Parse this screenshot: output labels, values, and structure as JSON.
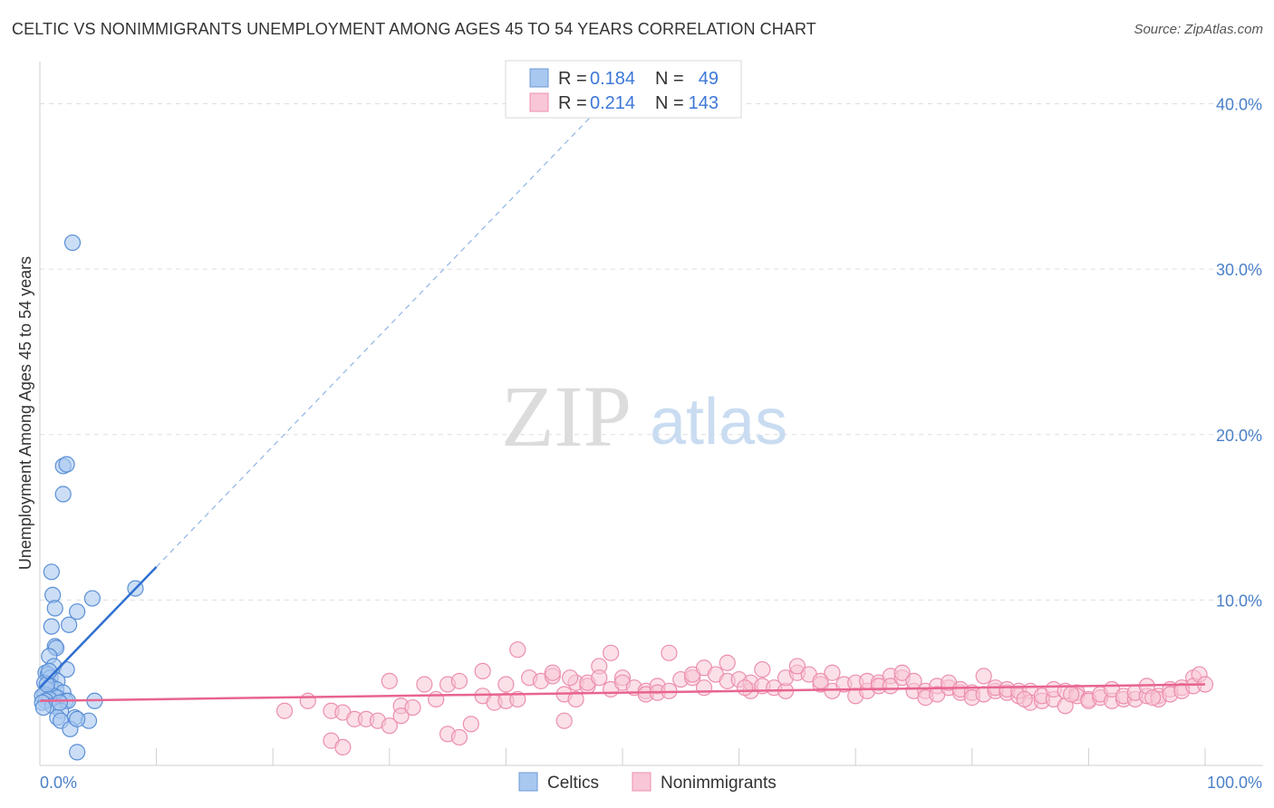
{
  "header": {
    "title": "CELTIC VS NONIMMIGRANTS UNEMPLOYMENT AMONG AGES 45 TO 54 YEARS CORRELATION CHART",
    "source": "Source: ZipAtlas.com"
  },
  "watermark": {
    "zip": "ZIP",
    "atlas": "atlas"
  },
  "legend": {
    "r_label": "R =",
    "n_label": "N =",
    "rows": [
      {
        "r": "0.184",
        "n": "49"
      },
      {
        "r": "0.214",
        "n": "143"
      }
    ]
  },
  "chart_data": {
    "type": "scatter",
    "title": "CELTIC VS NONIMMIGRANTS UNEMPLOYMENT AMONG AGES 45 TO 54 YEARS CORRELATION CHART",
    "xlabel": "",
    "ylabel": "Unemployment Among Ages 45 to 54 years",
    "xlim": [
      0,
      100
    ],
    "ylim": [
      0,
      42
    ],
    "x_tick_labels": [
      "0.0%",
      "100.0%"
    ],
    "y_ticks": [
      10,
      20,
      30,
      40
    ],
    "y_tick_labels": [
      "10.0%",
      "20.0%",
      "30.0%",
      "40.0%"
    ],
    "grid": true,
    "colors": {
      "celtics_fill": "#a9c8f0",
      "celtics_stroke": "#5a8fd6",
      "celtics_line": "#2f6fd0",
      "nonimm_fill": "#f8c6d6",
      "nonimm_stroke": "#ec8fae",
      "nonimm_line": "#e8648f"
    },
    "series": [
      {
        "name": "Celtics",
        "r": 0.184,
        "n": 49,
        "trend": {
          "x0": 0,
          "y0": 4.7,
          "x1": 10,
          "y1": 12.0,
          "dashed_to_x": 50,
          "dashed_to_y": 41.2
        },
        "points": [
          [
            2.8,
            31.6
          ],
          [
            2.0,
            18.1
          ],
          [
            2.3,
            18.2
          ],
          [
            2.0,
            16.4
          ],
          [
            1.0,
            11.7
          ],
          [
            8.2,
            10.7
          ],
          [
            1.1,
            10.3
          ],
          [
            4.5,
            10.1
          ],
          [
            1.3,
            9.5
          ],
          [
            3.2,
            9.3
          ],
          [
            1.0,
            8.4
          ],
          [
            2.5,
            8.5
          ],
          [
            1.3,
            7.2
          ],
          [
            1.4,
            7.1
          ],
          [
            0.8,
            6.6
          ],
          [
            1.2,
            6.0
          ],
          [
            2.3,
            5.8
          ],
          [
            0.5,
            5.6
          ],
          [
            0.7,
            5.5
          ],
          [
            0.9,
            5.3
          ],
          [
            1.5,
            5.1
          ],
          [
            0.4,
            5.0
          ],
          [
            0.9,
            4.8
          ],
          [
            1.4,
            4.6
          ],
          [
            0.6,
            4.6
          ],
          [
            2.0,
            4.4
          ],
          [
            0.4,
            4.3
          ],
          [
            1.2,
            4.2
          ],
          [
            0.2,
            4.2
          ],
          [
            1.5,
            4.1
          ],
          [
            0.8,
            4.0
          ],
          [
            2.2,
            3.9
          ],
          [
            0.5,
            3.9
          ],
          [
            2.4,
            3.9
          ],
          [
            0.2,
            3.8
          ],
          [
            4.7,
            3.9
          ],
          [
            1.1,
            3.6
          ],
          [
            0.3,
            3.5
          ],
          [
            1.8,
            3.3
          ],
          [
            1.5,
            2.9
          ],
          [
            3.0,
            2.9
          ],
          [
            1.8,
            2.7
          ],
          [
            4.2,
            2.7
          ],
          [
            2.6,
            2.2
          ],
          [
            0.6,
            4.9
          ],
          [
            0.8,
            5.7
          ],
          [
            1.7,
            3.8
          ],
          [
            3.2,
            2.8
          ],
          [
            3.2,
            0.8
          ]
        ]
      },
      {
        "name": "Nonimmigrants",
        "r": 0.214,
        "n": 143,
        "trend": {
          "x0": 0,
          "y0": 3.9,
          "x1": 100,
          "y1": 4.9
        },
        "points": [
          [
            21,
            3.3
          ],
          [
            25,
            3.3
          ],
          [
            26,
            3.2
          ],
          [
            27,
            2.8
          ],
          [
            28,
            2.8
          ],
          [
            29,
            2.7
          ],
          [
            30,
            5.1
          ],
          [
            30,
            2.4
          ],
          [
            31,
            3.6
          ],
          [
            31,
            3.0
          ],
          [
            32,
            3.5
          ],
          [
            25,
            1.5
          ],
          [
            26,
            1.1
          ],
          [
            33,
            4.9
          ],
          [
            34,
            4.0
          ],
          [
            35,
            4.9
          ],
          [
            36,
            5.1
          ],
          [
            35,
            1.9
          ],
          [
            36,
            1.7
          ],
          [
            37,
            2.5
          ],
          [
            38,
            4.2
          ],
          [
            38,
            5.7
          ],
          [
            39,
            3.8
          ],
          [
            40,
            3.9
          ],
          [
            40,
            4.9
          ],
          [
            41,
            4.0
          ],
          [
            41,
            7.0
          ],
          [
            42,
            5.3
          ],
          [
            43,
            5.1
          ],
          [
            44,
            5.4
          ],
          [
            44,
            5.6
          ],
          [
            45,
            4.3
          ],
          [
            45,
            2.7
          ],
          [
            46,
            4.0
          ],
          [
            46,
            5.0
          ],
          [
            47,
            4.8
          ],
          [
            47,
            5.0
          ],
          [
            48,
            6.0
          ],
          [
            48,
            5.3
          ],
          [
            49,
            4.6
          ],
          [
            49,
            6.8
          ],
          [
            50,
            5.3
          ],
          [
            50,
            5.0
          ],
          [
            51,
            4.7
          ],
          [
            52,
            4.5
          ],
          [
            52,
            4.3
          ],
          [
            53,
            4.8
          ],
          [
            53,
            4.4
          ],
          [
            54,
            4.5
          ],
          [
            54,
            6.8
          ],
          [
            55,
            5.2
          ],
          [
            56,
            5.3
          ],
          [
            56,
            5.5
          ],
          [
            57,
            5.9
          ],
          [
            57,
            4.7
          ],
          [
            58,
            5.5
          ],
          [
            59,
            6.2
          ],
          [
            59,
            5.1
          ],
          [
            60,
            5.2
          ],
          [
            61,
            4.5
          ],
          [
            61,
            5.0
          ],
          [
            62,
            4.8
          ],
          [
            62,
            5.8
          ],
          [
            63,
            4.7
          ],
          [
            64,
            4.5
          ],
          [
            64,
            5.3
          ],
          [
            65,
            5.6
          ],
          [
            65,
            6.0
          ],
          [
            66,
            5.5
          ],
          [
            67,
            4.9
          ],
          [
            67,
            5.1
          ],
          [
            68,
            5.6
          ],
          [
            68,
            4.5
          ],
          [
            69,
            4.9
          ],
          [
            70,
            5.0
          ],
          [
            70,
            4.2
          ],
          [
            71,
            4.5
          ],
          [
            71,
            5.1
          ],
          [
            72,
            5.0
          ],
          [
            72,
            4.8
          ],
          [
            73,
            5.4
          ],
          [
            73,
            4.8
          ],
          [
            74,
            5.3
          ],
          [
            74,
            5.6
          ],
          [
            75,
            4.5
          ],
          [
            75,
            5.1
          ],
          [
            76,
            4.5
          ],
          [
            76,
            4.1
          ],
          [
            77,
            4.8
          ],
          [
            77,
            4.3
          ],
          [
            78,
            4.7
          ],
          [
            78,
            5.0
          ],
          [
            79,
            4.4
          ],
          [
            79,
            4.6
          ],
          [
            80,
            4.4
          ],
          [
            80,
            4.1
          ],
          [
            81,
            4.3
          ],
          [
            81,
            5.4
          ],
          [
            82,
            4.5
          ],
          [
            82,
            4.7
          ],
          [
            83,
            4.4
          ],
          [
            83,
            4.6
          ],
          [
            84,
            4.2
          ],
          [
            84,
            4.5
          ],
          [
            85,
            4.5
          ],
          [
            85,
            3.8
          ],
          [
            86,
            3.9
          ],
          [
            86,
            4.2
          ],
          [
            87,
            4.0
          ],
          [
            87,
            4.6
          ],
          [
            88,
            3.6
          ],
          [
            88,
            4.5
          ],
          [
            89,
            4.4
          ],
          [
            89,
            4.2
          ],
          [
            90,
            4.0
          ],
          [
            90,
            3.9
          ],
          [
            91,
            4.1
          ],
          [
            91,
            4.3
          ],
          [
            92,
            3.9
          ],
          [
            92,
            4.6
          ],
          [
            93,
            4.0
          ],
          [
            93,
            4.2
          ],
          [
            94,
            4.0
          ],
          [
            94,
            4.4
          ],
          [
            95,
            4.2
          ],
          [
            95,
            4.8
          ],
          [
            96,
            4.2
          ],
          [
            96,
            4.0
          ],
          [
            97,
            4.6
          ],
          [
            97,
            4.3
          ],
          [
            98,
            4.7
          ],
          [
            98,
            4.5
          ],
          [
            99,
            5.3
          ],
          [
            99,
            4.8
          ],
          [
            99.5,
            5.5
          ],
          [
            100,
            4.9
          ],
          [
            95.5,
            4.1
          ],
          [
            88.5,
            4.3
          ],
          [
            84.5,
            4.0
          ],
          [
            60.5,
            4.7
          ],
          [
            45.5,
            5.3
          ],
          [
            23,
            3.9
          ]
        ]
      }
    ]
  },
  "bottom_legend": [
    {
      "label": "Celtics"
    },
    {
      "label": "Nonimmigrants"
    }
  ]
}
